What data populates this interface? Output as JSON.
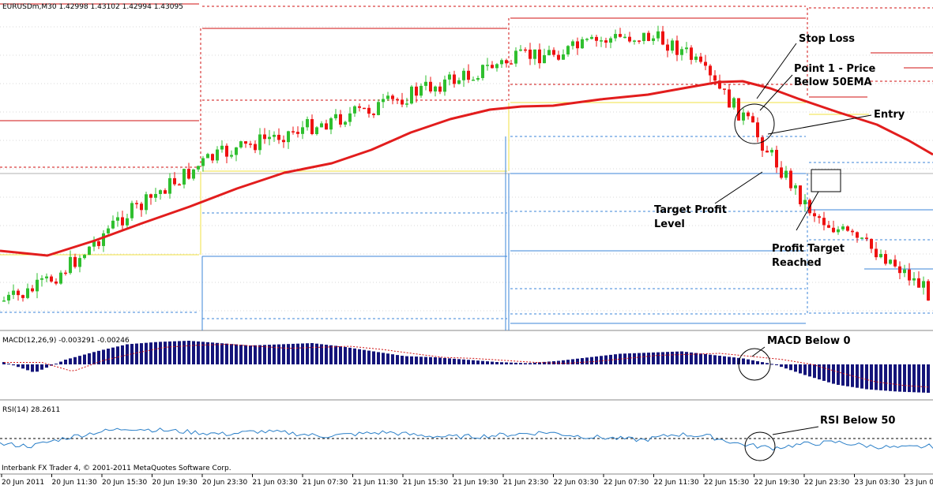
{
  "window": {
    "header": "EURUSDm,M30  1.42998 1.43102 1.42994 1.43095",
    "copyright": "Interbank FX Trader 4, © 2001-2011 MetaQuotes Software Corp."
  },
  "chart_data": {
    "type": "candlestick",
    "symbol": "EURUSDm",
    "timeframe": "M30",
    "ohlc_readout": {
      "open": 1.42998,
      "high": 1.43102,
      "low": 1.42994,
      "close": 1.43095
    },
    "x_tick_labels": [
      "20 Jun 2011",
      "20 Jun 11:30",
      "20 Jun 15:30",
      "20 Jun 19:30",
      "20 Jun 23:30",
      "21 Jun 03:30",
      "21 Jun 07:30",
      "21 Jun 11:30",
      "21 Jun 15:30",
      "21 Jun 19:30",
      "21 Jun 23:30",
      "22 Jun 03:30",
      "22 Jun 07:30",
      "22 Jun 11:30",
      "22 Jun 15:30",
      "22 Jun 19:30",
      "22 Jun 23:30",
      "23 Jun 03:30",
      "23 Jun 0"
    ],
    "candle_trend": [
      0.03,
      0.05,
      0.09,
      0.14,
      0.2,
      0.27,
      0.33,
      0.37,
      0.43,
      0.47,
      0.52,
      0.55,
      0.57,
      0.6,
      0.62,
      0.64,
      0.66,
      0.68,
      0.7,
      0.72,
      0.75,
      0.78,
      0.8,
      0.82,
      0.85,
      0.87,
      0.89,
      0.9,
      0.91,
      0.93,
      0.95,
      0.96,
      0.96,
      0.94,
      0.9,
      0.82,
      0.74,
      0.66,
      0.56,
      0.46,
      0.36,
      0.3,
      0.26,
      0.22,
      0.18,
      0.12,
      0.06
    ],
    "series": [
      {
        "name": "EMA 50",
        "color": "#e21d1d"
      },
      {
        "name": "MACD(12,26,9)",
        "value": -0.003291,
        "color": "#14147a"
      },
      {
        "name": "RSI(14)",
        "value": 28.2611,
        "level": 50,
        "color": "#2a7fc8"
      }
    ],
    "macd_label": "MACD(12,26,9) -0.003291 -0.00246",
    "rsi_label": "RSI(14) 28.2611",
    "annotations": [
      {
        "id": "stop-loss",
        "text": "Stop Loss"
      },
      {
        "id": "point1",
        "lines": [
          "Point 1 - Price",
          "Below 50EMA"
        ]
      },
      {
        "id": "entry",
        "text": "Entry"
      },
      {
        "id": "target-profit",
        "lines": [
          "Target Profit",
          "Level"
        ]
      },
      {
        "id": "profit-reached",
        "lines": [
          "Profit Target",
          "Reached"
        ]
      },
      {
        "id": "macd-below",
        "text": "MACD Below 0"
      },
      {
        "id": "rsi-below",
        "text": "RSI Below 50"
      }
    ]
  },
  "colors": {
    "bull": "#2fbf2f",
    "bear": "#ee1111",
    "ema": "#e21d1d",
    "macd": "#14147a",
    "rsi": "#2a7fc8",
    "yellow": "#f0e040",
    "blue": "#3b86d9"
  }
}
